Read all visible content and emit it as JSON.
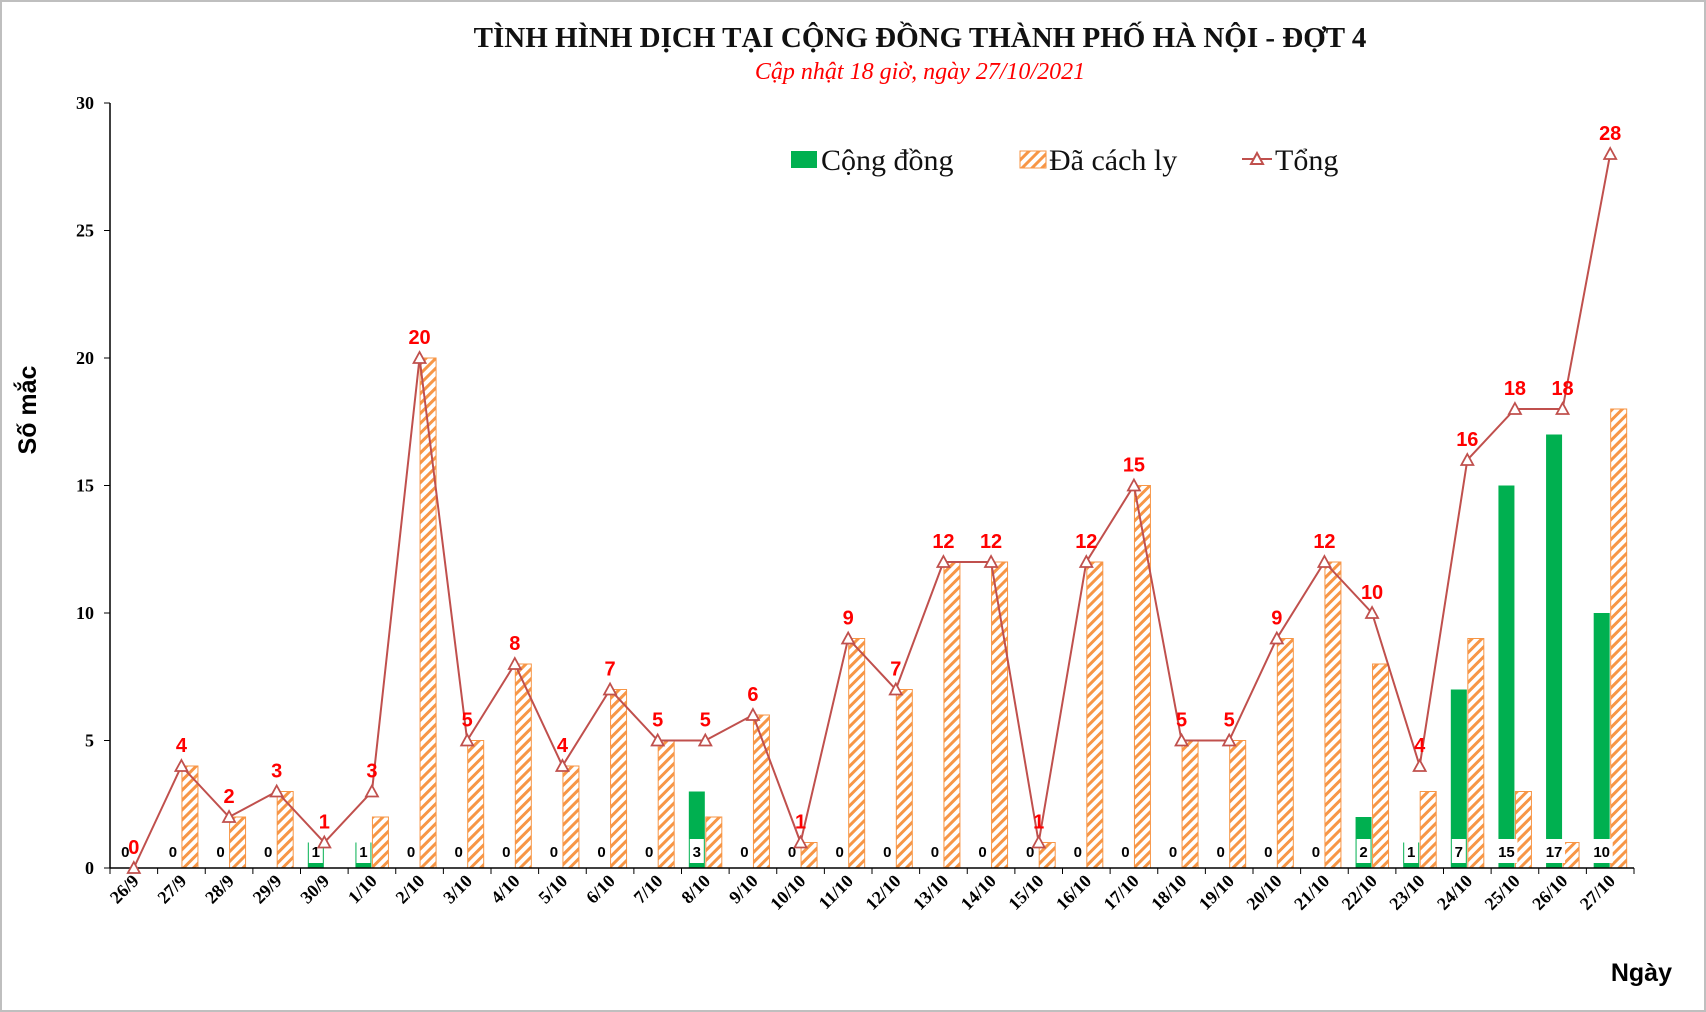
{
  "chart_data": {
    "type": "bar",
    "title": "TÌNH HÌNH DỊCH TẠI CỘNG ĐỒNG THÀNH PHỐ HÀ NỘI - ĐỢT 4",
    "subtitle": "Cập nhật 18 giờ, ngày 27/10/2021",
    "ylabel": "Số mắc",
    "xlabel": "Ngày",
    "ylim": [
      0,
      30
    ],
    "yticks": [
      "0",
      "5",
      "10",
      "15",
      "20",
      "25",
      "30"
    ],
    "legend_position": "top-right",
    "categories": [
      "26/9",
      "27/9",
      "28/9",
      "29/9",
      "30/9",
      "1/10",
      "2/10",
      "3/10",
      "4/10",
      "5/10",
      "6/10",
      "7/10",
      "8/10",
      "9/10",
      "10/10",
      "11/10",
      "12/10",
      "13/10",
      "14/10",
      "15/10",
      "16/10",
      "17/10",
      "18/10",
      "19/10",
      "20/10",
      "21/10",
      "22/10",
      "23/10",
      "24/10",
      "25/10",
      "26/10",
      "27/10"
    ],
    "series": [
      {
        "name": "Cộng đồng",
        "type": "bar",
        "color": "#00b050",
        "values": [
          0,
          0,
          0,
          0,
          1,
          1,
          0,
          0,
          0,
          0,
          0,
          0,
          3,
          0,
          0,
          0,
          0,
          0,
          0,
          0,
          0,
          0,
          0,
          0,
          0,
          0,
          2,
          1,
          7,
          15,
          17,
          10
        ]
      },
      {
        "name": "Đã cách ly",
        "type": "bar",
        "color": "#f79646",
        "values": [
          0,
          4,
          2,
          3,
          0,
          2,
          20,
          5,
          8,
          4,
          7,
          5,
          2,
          6,
          1,
          9,
          7,
          12,
          12,
          1,
          12,
          15,
          5,
          5,
          9,
          12,
          8,
          3,
          9,
          3,
          1,
          18
        ]
      },
      {
        "name": "Tổng",
        "type": "line",
        "color": "#c0504d",
        "values": [
          0,
          4,
          2,
          3,
          1,
          3,
          20,
          5,
          8,
          4,
          7,
          5,
          5,
          6,
          1,
          9,
          7,
          12,
          12,
          1,
          12,
          15,
          5,
          5,
          9,
          12,
          10,
          4,
          16,
          18,
          18,
          28
        ]
      }
    ],
    "community_labels": [
      "0",
      "0",
      "0",
      "0",
      "1",
      "1",
      "0",
      "0",
      "0",
      "0",
      "0",
      "0",
      "3",
      "0",
      "0",
      "0",
      "0",
      "0",
      "0",
      "0",
      "0",
      "0",
      "0",
      "0",
      "0",
      "0",
      "2",
      "1",
      "7",
      "15",
      "17",
      "10"
    ],
    "total_labels": [
      "0",
      "4",
      "2",
      "3",
      "1",
      "3",
      "20",
      "5",
      "8",
      "4",
      "7",
      "5",
      "5",
      "6",
      "1",
      "9",
      "7",
      "12",
      "12",
      "1",
      "12",
      "15",
      "5",
      "5",
      "9",
      "12",
      "10",
      "4",
      "16",
      "18",
      "18",
      "28"
    ]
  }
}
